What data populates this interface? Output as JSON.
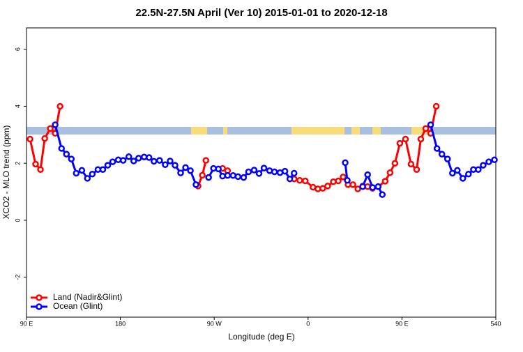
{
  "chart_data": {
    "type": "line",
    "title": "22.5N-27.5N April (Ver 10)   2015-01-01 to 2020-12-18",
    "x_label": "Longitude (deg E)",
    "y_label": "XCO2 - MLO trend (ppm)",
    "xlim": [
      90,
      540
    ],
    "xticks": [
      {
        "value": 90,
        "label": "90 E"
      },
      180,
      {
        "value": 270,
        "label": "90 W"
      },
      {
        "value": 360,
        "label": "0"
      },
      {
        "value": 450,
        "label": "90 E"
      },
      540
    ],
    "ylim": [
      -3.4,
      6.75
    ],
    "yticks": [
      -2,
      0,
      2,
      4,
      6
    ],
    "legend": "bottom-left",
    "series": [
      {
        "name": "Land (Nadir&Glint)",
        "color": "#ff0000",
        "x": [
          93.4,
          98.7,
          103.4,
          107.5,
          112.8,
          117.5,
          122.2,
          null,
          254.5,
          258.6,
          262,
          null,
          278,
          282.8,
          null,
          346.6,
          352,
          357.3,
          364.7,
          369.4,
          374.1,
          378.8,
          384.2,
          388.9,
          393.6,
          398.3,
          403,
          407.7,
          412.4,
          417.1,
          421.8,
          427.2,
          433.9,
          438.6,
          443.3,
          448,
          453.4,
          458.7,
          464.1,
          468.1,
          472.8,
          477.5,
          482.9
        ],
        "values": [
          2.85,
          1.97,
          1.78,
          2.87,
          3.22,
          3.05,
          4.0,
          null,
          1.2,
          1.58,
          2.1,
          null,
          1.82,
          1.74,
          null,
          1.45,
          1.4,
          1.38,
          1.16,
          1.1,
          1.12,
          1.2,
          1.35,
          1.38,
          1.52,
          1.25,
          1.25,
          1.1,
          1.2,
          1.18,
          1.12,
          1.18,
          1.37,
          1.67,
          2.0,
          2.7,
          2.85,
          1.97,
          1.78,
          2.85,
          3.22,
          3.05,
          4.0
        ]
      },
      {
        "name": "Ocean (Glint)",
        "color": "#0000ff",
        "x": [
          117.5,
          123.6,
          128.3,
          133,
          137.7,
          143.1,
          148.4,
          153.1,
          158.5,
          163.2,
          167.9,
          172.6,
          178,
          182.7,
          188.1,
          192.8,
          197.5,
          202.8,
          207.5,
          212.2,
          217.6,
          223,
          227.7,
          232.4,
          237.8,
          242.5,
          247.2,
          252.5,
          null,
          264.6,
          269.3,
          274,
          278,
          282.8,
          288.1,
          292.8,
          298.2,
          302.9,
          308.3,
          313,
          317.7,
          323.1,
          327.8,
          333.1,
          337.8,
          342.5,
          346.6,
          null,
          395.6,
          397.6,
          null,
          412.4,
          417.1,
          421.8,
          427.2,
          431.2,
          null,
          477.5,
          483.6,
          488.3,
          493.7,
          498.4,
          503.1,
          508.4,
          513.8,
          518.5,
          523.2,
          527.9,
          533.3,
          538.7
        ],
        "values": [
          3.35,
          2.52,
          2.32,
          2.15,
          1.65,
          1.75,
          1.47,
          1.62,
          1.78,
          1.78,
          1.93,
          2.05,
          2.12,
          2.1,
          2.23,
          2.08,
          2.18,
          2.22,
          2.2,
          2.07,
          2.1,
          1.95,
          2.08,
          1.93,
          1.66,
          1.85,
          1.74,
          1.25,
          null,
          1.5,
          1.82,
          1.8,
          1.55,
          1.57,
          1.57,
          1.53,
          1.5,
          1.7,
          1.76,
          1.64,
          1.83,
          1.74,
          1.7,
          1.67,
          1.72,
          1.45,
          1.65,
          null,
          2.02,
          1.4,
          null,
          1.18,
          1.6,
          1.15,
          1.18,
          0.9,
          null,
          3.35,
          2.52,
          2.32,
          2.15,
          1.65,
          1.75,
          1.47,
          1.62,
          1.78,
          1.78,
          1.93,
          2.05,
          2.12
        ]
      }
    ]
  }
}
